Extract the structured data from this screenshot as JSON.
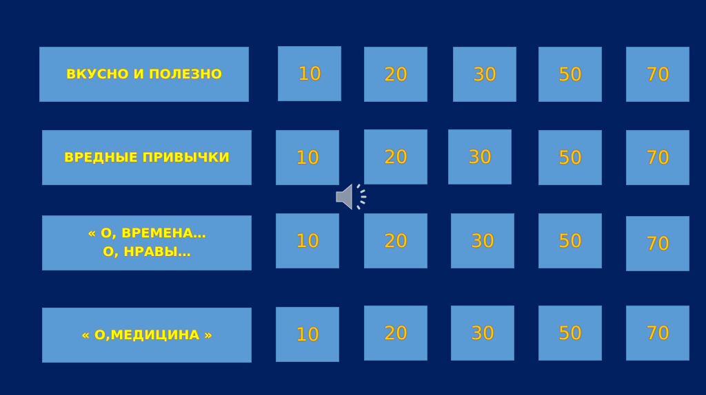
{
  "board": {
    "rows": [
      {
        "category": "ВКУСНО И ПОЛЕЗНО",
        "values": [
          "10",
          "20",
          "30",
          "50",
          "70"
        ]
      },
      {
        "category": "ВРЕДНЫЕ ПРИВЫЧКИ",
        "values": [
          "10",
          "20",
          "30",
          "50",
          "70"
        ]
      },
      {
        "category": "« О, ВРЕМЕНА… О, НРАВЫ…",
        "values": [
          "10",
          "20",
          "30",
          "50",
          "70"
        ]
      },
      {
        "category": "« О,МЕДИЦИНА »",
        "values": [
          "10",
          "20",
          "30",
          "50",
          "70"
        ]
      }
    ]
  },
  "colors": {
    "background": "#002060",
    "tile": "#5b9bd5",
    "category_text": "#ffff00",
    "value_text": "#ffcc00"
  },
  "icons": {
    "audio": "speaker-icon"
  }
}
